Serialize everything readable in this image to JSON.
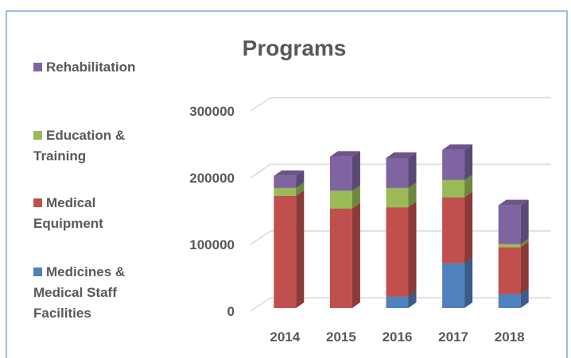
{
  "chart_data": {
    "type": "bar3d_stacked",
    "title": "Programs",
    "categories": [
      "2014",
      "2015",
      "2016",
      "2017",
      "2018"
    ],
    "series": [
      {
        "name": "Medicines & Medical Staff Facilities",
        "color": "#4f81bd",
        "values": [
          0,
          0,
          17000,
          67000,
          21000
        ]
      },
      {
        "name": "Medical Equipment",
        "color": "#c0504d",
        "values": [
          168000,
          149000,
          134000,
          99000,
          70000
        ]
      },
      {
        "name": "Education & Training",
        "color": "#9bbb59",
        "values": [
          12000,
          27000,
          29000,
          26000,
          5000
        ]
      },
      {
        "name": "Rehabilitation",
        "color": "#8064a2",
        "values": [
          18000,
          51000,
          45000,
          45000,
          58000
        ]
      }
    ],
    "ylim": [
      0,
      300000
    ],
    "yticks": [
      0,
      100000,
      200000,
      300000
    ],
    "grid": true,
    "legend": "left"
  }
}
